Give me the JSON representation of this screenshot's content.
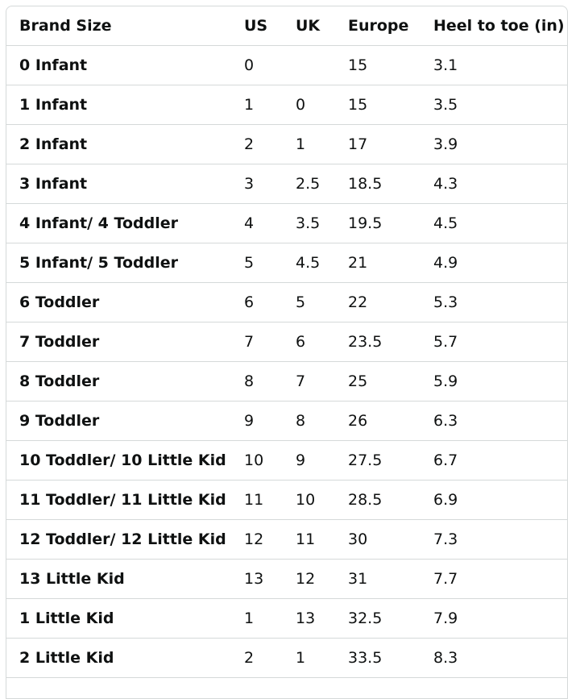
{
  "table": {
    "headers": [
      "Brand Size",
      "US",
      "UK",
      "Europe",
      "Heel to toe (in)"
    ],
    "rows": [
      [
        "0 Infant",
        "0",
        null,
        "15",
        "3.1"
      ],
      [
        "1 Infant",
        "1",
        "0",
        "15",
        "3.5"
      ],
      [
        "2 Infant",
        "2",
        "1",
        "17",
        "3.9"
      ],
      [
        "3 Infant",
        "3",
        "2.5",
        "18.5",
        "4.3"
      ],
      [
        "4 Infant/ 4 Toddler",
        "4",
        "3.5",
        "19.5",
        "4.5"
      ],
      [
        "5 Infant/ 5 Toddler",
        "5",
        "4.5",
        "21",
        "4.9"
      ],
      [
        "6 Toddler",
        "6",
        "5",
        "22",
        "5.3"
      ],
      [
        "7 Toddler",
        "7",
        "6",
        "23.5",
        "5.7"
      ],
      [
        "8 Toddler",
        "8",
        "7",
        "25",
        "5.9"
      ],
      [
        "9 Toddler",
        "9",
        "8",
        "26",
        "6.3"
      ],
      [
        "10 Toddler/ 10 Little Kid",
        "10",
        "9",
        "27.5",
        "6.7"
      ],
      [
        "11 Toddler/ 11 Little Kid",
        "11",
        "10",
        "28.5",
        "6.9"
      ],
      [
        "12 Toddler/ 12 Little Kid",
        "12",
        "11",
        "30",
        "7.3"
      ],
      [
        "13 Little Kid",
        "13",
        "12",
        "31",
        "7.7"
      ],
      [
        "1 Little Kid",
        "1",
        "13",
        "32.5",
        "7.9"
      ],
      [
        "2 Little Kid",
        "2",
        "1",
        "33.5",
        "8.3"
      ]
    ]
  }
}
